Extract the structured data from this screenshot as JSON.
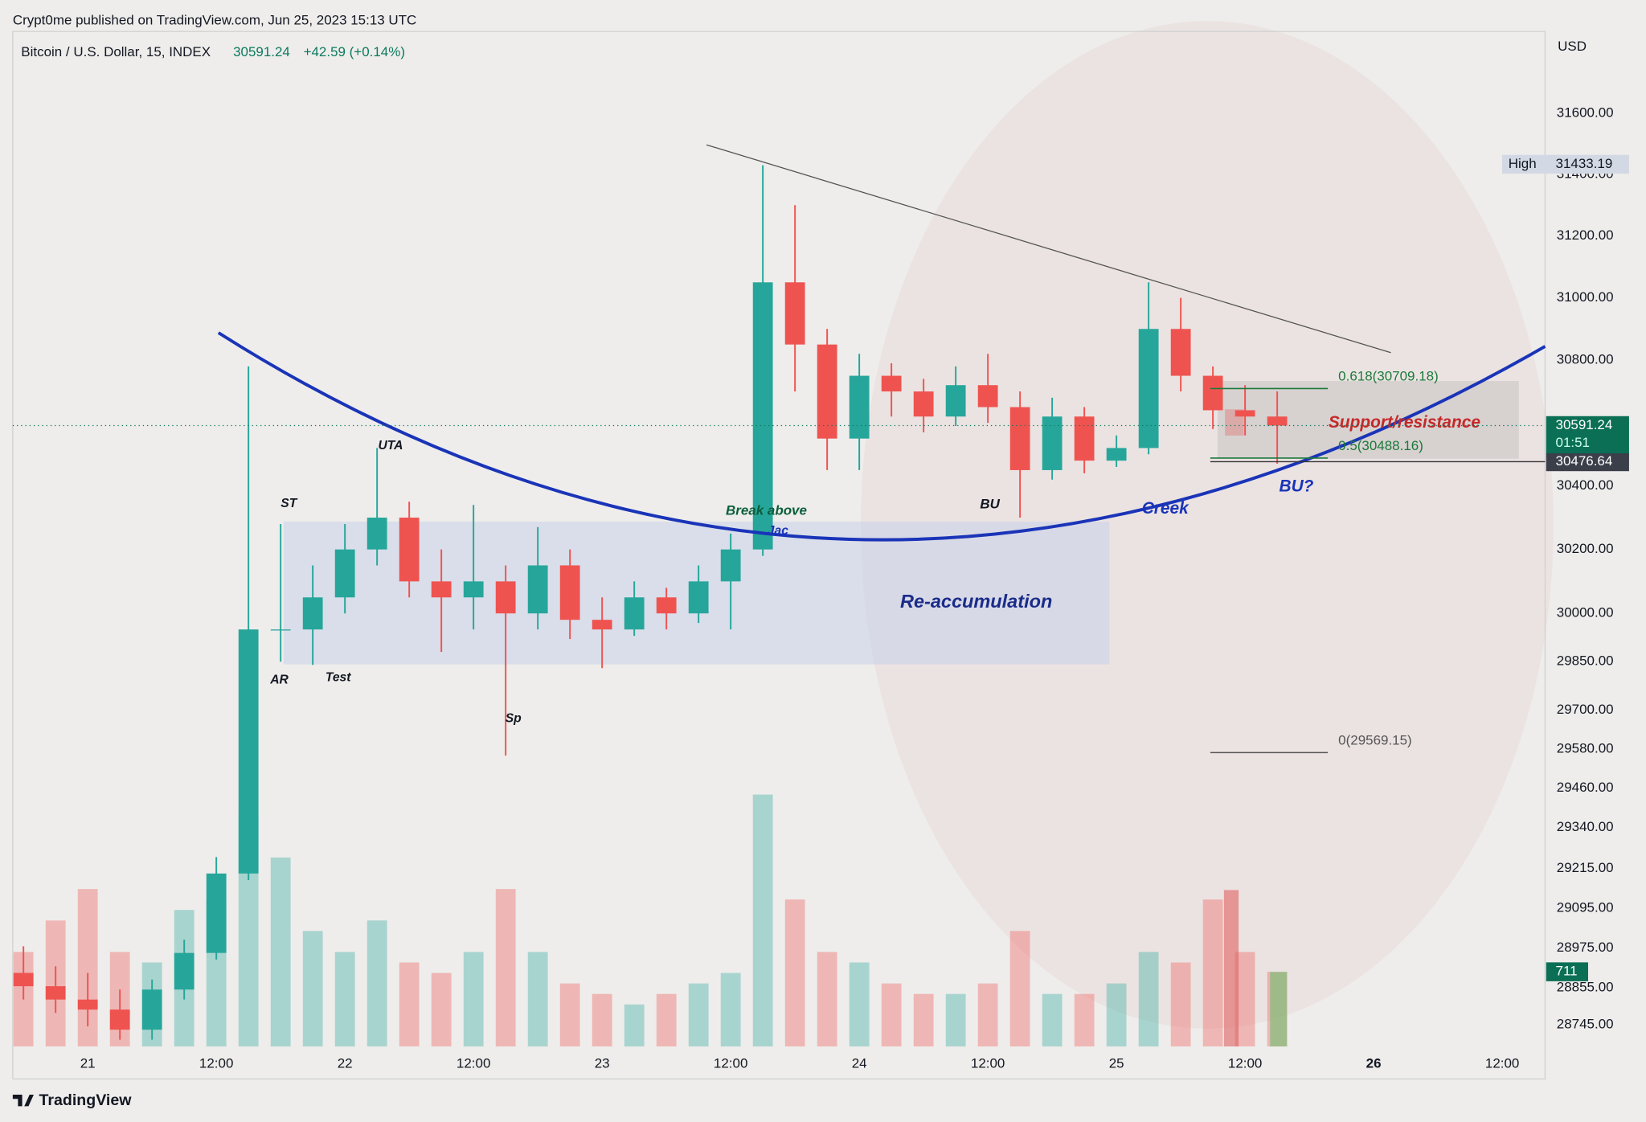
{
  "header": {
    "published": "Crypt0me published on TradingView.com, Jun 25, 2023 15:13 UTC",
    "symbol": "Bitcoin / U.S. Dollar, 15, INDEX",
    "change": "+42.59 (+0.14%)",
    "currency": "USD",
    "brand": "TradingView"
  },
  "chart_data": {
    "type": "candlestick",
    "log_scale": true,
    "grid": false,
    "up_color": "#26a69a",
    "down_color": "#ef5350",
    "x": [
      -6,
      -3,
      0,
      3,
      6,
      9,
      12,
      15,
      18,
      21,
      24,
      27,
      30,
      33,
      36,
      39,
      42,
      45,
      48,
      51,
      54,
      57,
      60,
      63,
      66,
      69,
      72,
      75,
      78,
      81,
      84,
      87,
      90,
      93,
      96,
      99,
      102,
      105,
      108,
      111
    ],
    "open": [
      28900,
      28860,
      28820,
      28790,
      28730,
      28850,
      28960,
      29200,
      29950,
      29950,
      30050,
      30200,
      30300,
      30100,
      30050,
      30100,
      30000,
      30150,
      29980,
      29950,
      30050,
      30000,
      30100,
      30200,
      31050,
      30850,
      30550,
      30750,
      30700,
      30620,
      30720,
      30650,
      30450,
      30620,
      30480,
      30520,
      30900,
      30750,
      30640,
      30620
    ],
    "high": [
      28980,
      28920,
      28900,
      28850,
      28880,
      29000,
      29250,
      30780,
      30280,
      30150,
      30280,
      30520,
      30350,
      30200,
      30340,
      30150,
      30270,
      30200,
      30050,
      30100,
      30080,
      30150,
      30250,
      31430,
      31300,
      30900,
      30820,
      30790,
      30740,
      30780,
      30820,
      30700,
      30680,
      30650,
      30560,
      31050,
      31000,
      30780,
      30720,
      30700
    ],
    "low": [
      28820,
      28780,
      28740,
      28700,
      28700,
      28820,
      28940,
      29180,
      29850,
      29840,
      30000,
      30150,
      30050,
      29880,
      29950,
      29560,
      29950,
      29920,
      29830,
      29930,
      29950,
      29970,
      29950,
      30180,
      30700,
      30450,
      30450,
      30620,
      30570,
      30590,
      30600,
      30300,
      30420,
      30440,
      30460,
      30500,
      30700,
      30580,
      30560,
      30470
    ],
    "close": [
      28860,
      28820,
      28790,
      28730,
      28850,
      28960,
      29200,
      29950,
      29950,
      30050,
      30200,
      30300,
      30100,
      30050,
      30100,
      30000,
      30150,
      29980,
      29950,
      30050,
      30000,
      30100,
      30200,
      31050,
      30850,
      30550,
      30750,
      30700,
      30620,
      30720,
      30650,
      30450,
      30620,
      30480,
      30520,
      30900,
      30750,
      30640,
      30620,
      30591.24
    ],
    "volume": [
      900,
      1200,
      1500,
      900,
      800,
      1300,
      1400,
      2200,
      1800,
      1100,
      900,
      1200,
      800,
      700,
      900,
      1500,
      900,
      600,
      500,
      400,
      500,
      600,
      700,
      2400,
      1400,
      900,
      800,
      600,
      500,
      500,
      600,
      1100,
      500,
      500,
      600,
      900,
      800,
      1400,
      900,
      711
    ],
    "xlim": [
      -7,
      136
    ],
    "xticks": [
      {
        "value": 0,
        "label": "21"
      },
      {
        "value": 12,
        "label": "12:00"
      },
      {
        "value": 24,
        "label": "22"
      },
      {
        "value": 36,
        "label": "12:00"
      },
      {
        "value": 48,
        "label": "23"
      },
      {
        "value": 60,
        "label": "12:00"
      },
      {
        "value": 72,
        "label": "24"
      },
      {
        "value": 84,
        "label": "12:00"
      },
      {
        "value": 96,
        "label": "25"
      },
      {
        "value": 108,
        "label": "12:00"
      },
      {
        "value": 120,
        "label": "26"
      },
      {
        "value": 132,
        "label": "12:00"
      }
    ],
    "ylim": [
      28680,
      31870
    ],
    "yticks": [
      {
        "value": 31600,
        "label": "31600.00"
      },
      {
        "value": 31400,
        "label": "31400.00"
      },
      {
        "value": 31200,
        "label": "31200.00"
      },
      {
        "value": 31000,
        "label": "31000.00"
      },
      {
        "value": 30800,
        "label": "30800.00"
      },
      {
        "value": 30400,
        "label": "30400.00"
      },
      {
        "value": 30200,
        "label": "30200.00"
      },
      {
        "value": 30000,
        "label": "30000.00"
      },
      {
        "value": 29850,
        "label": "29850.00"
      },
      {
        "value": 29700,
        "label": "29700.00"
      },
      {
        "value": 29580,
        "label": "29580.00"
      },
      {
        "value": 29460,
        "label": "29460.00"
      },
      {
        "value": 29340,
        "label": "29340.00"
      },
      {
        "value": 29215,
        "label": "29215.00"
      },
      {
        "value": 29095,
        "label": "29095.00"
      },
      {
        "value": 28975,
        "label": "28975.00"
      },
      {
        "value": 28855,
        "label": "28855.00"
      },
      {
        "value": 28745,
        "label": "28745.00"
      }
    ],
    "high_marker": {
      "label": "High",
      "value": 31433.19
    },
    "countdown": "01:51",
    "low_line": 30476.64,
    "fib_levels": [
      {
        "value": 30709.18,
        "label": "0.618(30709.18)"
      },
      {
        "value": 30488.16,
        "label": "0.5(30488.16)"
      },
      {
        "value": 29569.15,
        "label": "0(29569.15)"
      }
    ],
    "annotations": [
      "ST",
      "UTA",
      "AR",
      "Test",
      "Sp",
      "Break above",
      "Jac",
      "BU",
      "Creek",
      "Re-accumulation",
      "Support/resistance",
      "BU?"
    ]
  }
}
